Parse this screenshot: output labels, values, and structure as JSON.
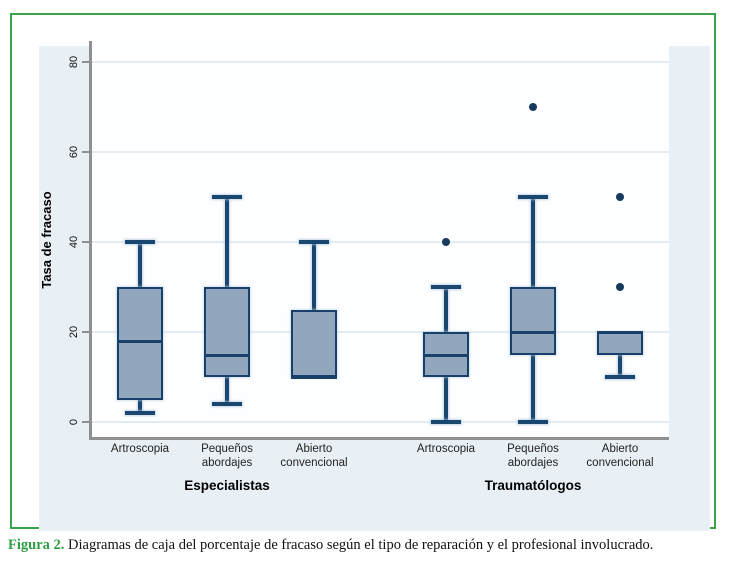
{
  "figure_caption": {
    "label": "Figura 2.",
    "text": " Diagramas de caja del porcentaje de fracaso según el tipo de reparación y el profesional involucrado."
  },
  "chart_data": {
    "type": "boxplot",
    "ylabel": "Tasa de fracaso",
    "ylim": [
      0,
      85
    ],
    "yticks": [
      0,
      20,
      40,
      60,
      80
    ],
    "grid": true,
    "groups": [
      {
        "label": "Especialistas",
        "categories": [
          "Artroscopia",
          "Pequeños abordajes",
          "Abierto convencional"
        ]
      },
      {
        "label": "Traumatólogos",
        "categories": [
          "Artroscopia",
          "Pequeños abordajes",
          "Abierto convencional"
        ]
      }
    ],
    "series": [
      {
        "group": "Especialistas",
        "category": "Artroscopia",
        "whisker_low": 2,
        "q1": 5,
        "median": 18,
        "q3": 30,
        "whisker_high": 40,
        "outliers": []
      },
      {
        "group": "Especialistas",
        "category": "Pequeños abordajes",
        "whisker_low": 4,
        "q1": 10,
        "median": 15,
        "q3": 30,
        "whisker_high": 50,
        "outliers": []
      },
      {
        "group": "Especialistas",
        "category": "Abierto convencional",
        "whisker_low": 10,
        "q1": 10,
        "median": 10,
        "q3": 25,
        "whisker_high": 40,
        "outliers": []
      },
      {
        "group": "Traumatólogos",
        "category": "Artroscopia",
        "whisker_low": 0,
        "q1": 10,
        "median": 15,
        "q3": 20,
        "whisker_high": 30,
        "outliers": [
          40
        ]
      },
      {
        "group": "Traumatólogos",
        "category": "Pequeños abordajes",
        "whisker_low": 0,
        "q1": 15,
        "median": 20,
        "q3": 30,
        "whisker_high": 50,
        "outliers": [
          70
        ]
      },
      {
        "group": "Traumatólogos",
        "category": "Abierto convencional",
        "whisker_low": 10,
        "q1": 15,
        "median": 20,
        "q3": 20,
        "whisker_high": 20,
        "outliers": [
          30,
          50
        ]
      }
    ],
    "colors": {
      "box_fill": "#91a7bd",
      "box_border": "#17406a",
      "whisker": "#1a476f",
      "outlier": "#16395e",
      "plot_bg": "#fdfeff",
      "graph_bg": "#e9f0f5",
      "gridline": "#e2ecf2",
      "axis": "#8f8f8f",
      "frame_green": "#3aa34a"
    }
  }
}
